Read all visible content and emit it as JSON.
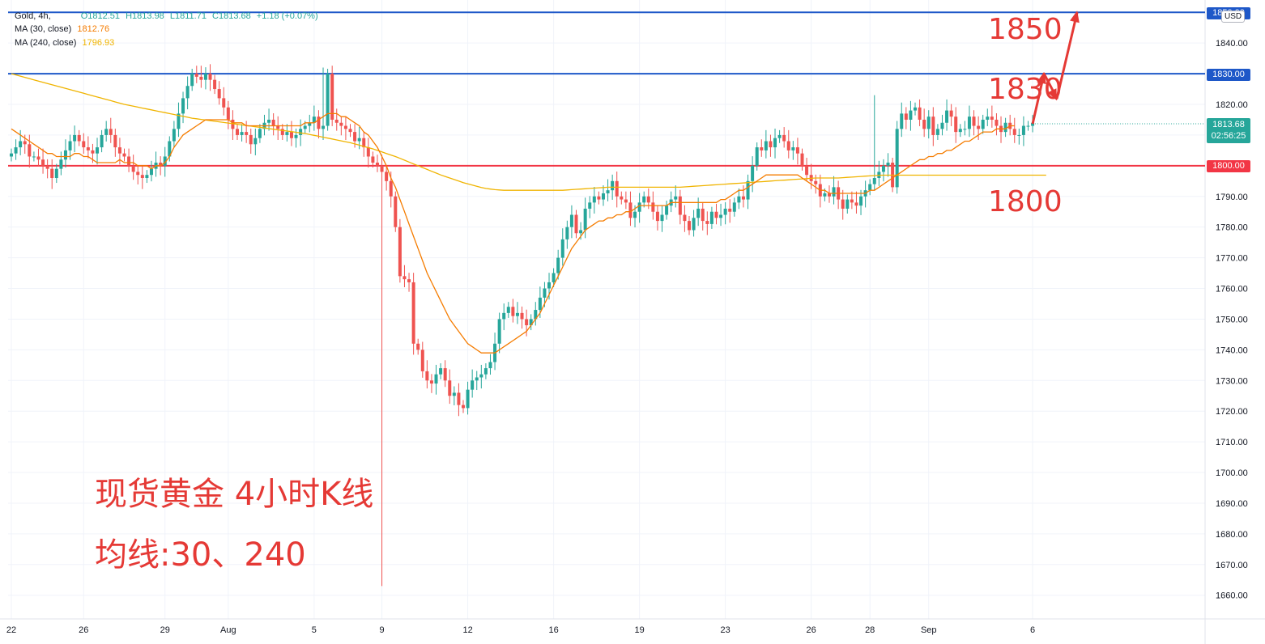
{
  "header": {
    "symbol": "Gold, 4h,",
    "open": "O1812.51",
    "high": "H1813.98",
    "low": "L1811.71",
    "close": "C1813.68",
    "change": "+1.18 (+0.07%)",
    "ma30_label": "MA (30, close)",
    "ma30_value": "1812.76",
    "ma240_label": "MA (240, close)",
    "ma240_value": "1796.93"
  },
  "currency": "USD",
  "badges": {
    "top": "1850.00",
    "mid": "1830.00",
    "current_price": "1813.68",
    "countdown": "02:56:25",
    "low": "1800.00"
  },
  "annotations": {
    "level_1850": "1850",
    "level_1830": "1830",
    "level_1800": "1800",
    "title": "现货黄金 4小时K线",
    "ma_note": "均线:30、240"
  },
  "colors": {
    "up": "#26a69a",
    "down": "#ef5350",
    "ma30": "#f57c00",
    "ma240": "#f0b400",
    "line_blue": "#1e58c8",
    "line_red": "#f23645",
    "annotation": "#e53935"
  },
  "chart_data": {
    "type": "candlestick",
    "title": "Gold, 4h",
    "ylabel": "USD",
    "ylim": [
      1655,
      1852
    ],
    "y_ticks": [
      1840,
      1830,
      1820,
      1810,
      1800,
      1790,
      1780,
      1770,
      1760,
      1750,
      1740,
      1730,
      1720,
      1710,
      1700,
      1690,
      1680,
      1670,
      1660
    ],
    "y_tick_labels": [
      "1840.00",
      "1830.00",
      "1820.00",
      "1810.00",
      "1800.00",
      "1790.00",
      "1780.00",
      "1770.00",
      "1760.00",
      "1750.00",
      "1740.00",
      "1730.00",
      "1720.00",
      "1710.00",
      "1700.00",
      "1690.00",
      "1680.00",
      "1670.00",
      "1660.00"
    ],
    "x_ticks": [
      {
        "label": "22",
        "bar": 0
      },
      {
        "label": "26",
        "bar": 16
      },
      {
        "label": "29",
        "bar": 34
      },
      {
        "label": "Aug",
        "bar": 48
      },
      {
        "label": "5",
        "bar": 67
      },
      {
        "label": "9",
        "bar": 82
      },
      {
        "label": "12",
        "bar": 101
      },
      {
        "label": "16",
        "bar": 120
      },
      {
        "label": "19",
        "bar": 139
      },
      {
        "label": "23",
        "bar": 158
      },
      {
        "label": "26",
        "bar": 177
      },
      {
        "label": "28",
        "bar": 190
      },
      {
        "label": "Sep",
        "bar": 203
      },
      {
        "label": "6",
        "bar": 226
      }
    ],
    "horizontal_lines": [
      {
        "name": "1850",
        "value": 1850,
        "color": "#1e58c8"
      },
      {
        "name": "1830",
        "value": 1830,
        "color": "#1e58c8"
      },
      {
        "name": "1800",
        "value": 1800,
        "color": "#f23645"
      }
    ],
    "candles_close": [
      1804,
      1806,
      1808,
      1807,
      1803,
      1803,
      1802,
      1800,
      1799,
      1796,
      1799,
      1802,
      1805,
      1808,
      1810,
      1808,
      1806,
      1805,
      1804,
      1806,
      1810,
      1812,
      1810,
      1806,
      1804,
      1803,
      1800,
      1798,
      1797,
      1796,
      1797,
      1799,
      1801,
      1800,
      1803,
      1808,
      1812,
      1817,
      1822,
      1826,
      1830,
      1829,
      1828,
      1830,
      1828,
      1825,
      1822,
      1819,
      1815,
      1812,
      1810,
      1811,
      1810,
      1807,
      1809,
      1812,
      1814,
      1815,
      1813,
      1812,
      1810,
      1811,
      1809,
      1810,
      1812,
      1813,
      1814,
      1816,
      1812,
      1813,
      1830,
      1815,
      1814,
      1813,
      1812,
      1811,
      1808,
      1809,
      1806,
      1803,
      1801,
      1800,
      1798,
      1795,
      1790,
      1780,
      1764,
      1763,
      1762,
      1742,
      1740,
      1733,
      1730,
      1729,
      1732,
      1734,
      1730,
      1725,
      1726,
      1722,
      1721,
      1727,
      1730,
      1731,
      1732,
      1734,
      1736,
      1742,
      1750,
      1752,
      1754,
      1751,
      1752,
      1750,
      1748,
      1750,
      1753,
      1757,
      1760,
      1762,
      1765,
      1770,
      1776,
      1780,
      1784,
      1778,
      1779,
      1786,
      1788,
      1790,
      1789,
      1791,
      1792,
      1795,
      1790,
      1789,
      1788,
      1783,
      1785,
      1788,
      1790,
      1788,
      1785,
      1782,
      1784,
      1787,
      1789,
      1790,
      1784,
      1782,
      1779,
      1783,
      1786,
      1782,
      1781,
      1785,
      1783,
      1784,
      1786,
      1785,
      1788,
      1790,
      1789,
      1795,
      1800,
      1806,
      1805,
      1808,
      1806,
      1809,
      1810,
      1808,
      1805,
      1806,
      1804,
      1800,
      1797,
      1795,
      1794,
      1790,
      1791,
      1790,
      1793,
      1789,
      1786,
      1789,
      1788,
      1787,
      1790,
      1792,
      1794,
      1796,
      1798,
      1800,
      1801,
      1793,
      1812,
      1817,
      1815,
      1818,
      1819,
      1815,
      1812,
      1816,
      1810,
      1812,
      1814,
      1818,
      1816,
      1811,
      1812,
      1812,
      1816,
      1813,
      1812,
      1815,
      1816,
      1815,
      1813,
      1811,
      1814,
      1812,
      1810,
      1810,
      1813,
      1813,
      1814
    ],
    "ma30_close": [
      1812,
      1811,
      1810,
      1809,
      1808,
      1807,
      1806,
      1805,
      1804,
      1804,
      1803,
      1803,
      1803,
      1803,
      1804,
      1804,
      1803,
      1803,
      1802,
      1801,
      1801,
      1801,
      1801,
      1801,
      1802,
      1801,
      1801,
      1801,
      1800,
      1800,
      1800,
      1799,
      1800,
      1800,
      1801,
      1803,
      1806,
      1808,
      1810,
      1811,
      1812,
      1813,
      1814,
      1815,
      1815,
      1815,
      1815,
      1815,
      1815,
      1814,
      1814,
      1814,
      1813,
      1813,
      1813,
      1813,
      1813,
      1813,
      1813,
      1813,
      1813,
      1813,
      1813,
      1813,
      1813,
      1814,
      1814,
      1814,
      1815,
      1816,
      1817,
      1817,
      1817,
      1816,
      1816,
      1815,
      1814,
      1813,
      1811,
      1810,
      1808,
      1806,
      1803,
      1800,
      1796,
      1793,
      1789,
      1785,
      1781,
      1777,
      1773,
      1769,
      1765,
      1762,
      1759,
      1756,
      1753,
      1750,
      1748,
      1746,
      1744,
      1742,
      1741,
      1740,
      1739,
      1739,
      1739,
      1739,
      1740,
      1741,
      1742,
      1743,
      1744,
      1745,
      1746,
      1748,
      1750,
      1752,
      1755,
      1758,
      1761,
      1764,
      1767,
      1770,
      1773,
      1775,
      1777,
      1779,
      1780,
      1781,
      1782,
      1782,
      1783,
      1783,
      1784,
      1784,
      1785,
      1785,
      1786,
      1787,
      1787,
      1787,
      1787,
      1787,
      1787,
      1787,
      1788,
      1788,
      1788,
      1788,
      1788,
      1788,
      1788,
      1788,
      1788,
      1788,
      1788,
      1789,
      1789,
      1790,
      1791,
      1792,
      1792,
      1793,
      1794,
      1795,
      1796,
      1797,
      1797,
      1797,
      1797,
      1797,
      1797,
      1797,
      1797,
      1796,
      1795,
      1794,
      1793,
      1792,
      1792,
      1791,
      1791,
      1791,
      1791,
      1791,
      1791,
      1791,
      1791,
      1791,
      1792,
      1792,
      1793,
      1794,
      1795,
      1796,
      1797,
      1798,
      1799,
      1800,
      1801,
      1802,
      1802,
      1803,
      1803,
      1804,
      1804,
      1805,
      1805,
      1806,
      1807,
      1808,
      1808,
      1809,
      1810,
      1811,
      1811,
      1811,
      1812,
      1812,
      1812,
      1813,
      1813
    ],
    "ma240_close": [
      1830,
      1829.6,
      1829.2,
      1828.8,
      1828.4,
      1828,
      1827.6,
      1827.2,
      1826.8,
      1826.4,
      1826,
      1825.6,
      1825.2,
      1824.8,
      1824.4,
      1824,
      1823.6,
      1823.2,
      1822.8,
      1822.4,
      1822,
      1821.6,
      1821.2,
      1820.8,
      1820.4,
      1820,
      1819.7,
      1819.4,
      1819.1,
      1818.8,
      1818.5,
      1818.2,
      1817.9,
      1817.6,
      1817.3,
      1817,
      1816.7,
      1816.4,
      1816.1,
      1815.8,
      1815.5,
      1815.3,
      1815.1,
      1814.9,
      1814.7,
      1814.5,
      1814.3,
      1814.1,
      1813.9,
      1813.7,
      1813.5,
      1813.3,
      1813.1,
      1812.9,
      1812.7,
      1812.5,
      1812.3,
      1812.1,
      1811.9,
      1811.7,
      1811.5,
      1811.3,
      1811.1,
      1810.9,
      1810.7,
      1810.5,
      1810.2,
      1809.9,
      1809.6,
      1809.3,
      1809,
      1808.7,
      1808.4,
      1808.1,
      1807.8,
      1807.5,
      1807.1,
      1806.7,
      1806.3,
      1805.9,
      1805.5,
      1805,
      1804.5,
      1804,
      1803.5,
      1803,
      1802.4,
      1801.8,
      1801.2,
      1800.6,
      1800,
      1799.4,
      1798.8,
      1798.2,
      1797.6,
      1797,
      1796.5,
      1796,
      1795.5,
      1795,
      1794.5,
      1794.1,
      1793.7,
      1793.3,
      1792.9,
      1792.6,
      1792.4,
      1792.2,
      1792.1,
      1792,
      1792,
      1792,
      1792,
      1792,
      1792,
      1792,
      1792,
      1792,
      1792,
      1792,
      1792,
      1792,
      1792,
      1792.1,
      1792.2,
      1792.3,
      1792.4,
      1792.5,
      1792.6,
      1792.7,
      1792.8,
      1792.9,
      1793,
      1793,
      1793,
      1793,
      1793,
      1793,
      1793,
      1793,
      1793,
      1793,
      1793,
      1793,
      1793,
      1793,
      1793,
      1793,
      1793,
      1793.1,
      1793.2,
      1793.3,
      1793.4,
      1793.5,
      1793.6,
      1793.7,
      1793.8,
      1793.9,
      1794,
      1794.1,
      1794.2,
      1794.3,
      1794.4,
      1794.5,
      1794.6,
      1794.7,
      1794.8,
      1794.9,
      1795,
      1795.1,
      1795.2,
      1795.3,
      1795.4,
      1795.5,
      1795.6,
      1795.7,
      1795.8,
      1795.9,
      1796,
      1796,
      1796,
      1796,
      1796,
      1796,
      1796.1,
      1796.2,
      1796.3,
      1796.4,
      1796.5,
      1796.6,
      1796.7,
      1796.8,
      1796.9,
      1796.93,
      1796.93,
      1796.93,
      1796.93,
      1796.93,
      1796.93,
      1796.93,
      1796.93,
      1796.93,
      1796.93,
      1796.93,
      1796.93,
      1796.93,
      1796.93,
      1796.93,
      1796.93,
      1796.93,
      1796.93,
      1796.93,
      1796.93,
      1796.93,
      1796.93,
      1796.93,
      1796.93,
      1796.93,
      1796.93,
      1796.93,
      1796.93,
      1796.93,
      1796.93,
      1796.93,
      1796.93,
      1796.93,
      1796.93,
      1796.93,
      1796.93,
      1796.93
    ],
    "projection": [
      1813.68,
      1830,
      1822,
      1850
    ],
    "notable_wicks": [
      {
        "bar": 82,
        "low": 1663
      },
      {
        "bar": 69,
        "high": 1832
      },
      {
        "bar": 191,
        "high": 1823
      }
    ]
  }
}
